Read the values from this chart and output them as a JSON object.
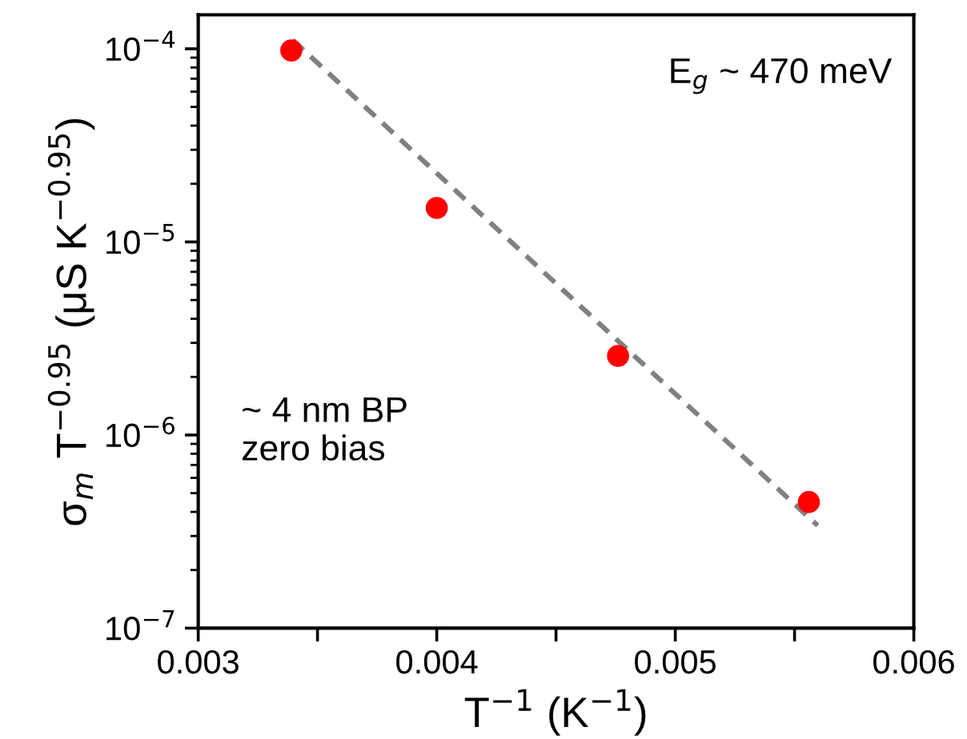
{
  "chart_data": {
    "type": "scatter",
    "xlabel": "T$^{−1}$ (K$^{−1}$)",
    "ylabel": "σ$_{m}$ T$^{−0.95}$ (μS K$^{−0.95}$)",
    "x": [
      0.00339,
      0.004,
      0.00476,
      0.00556
    ],
    "series": [
      {
        "color": "#ff0000",
        "marker": "circle",
        "values": [
          9.8e-05,
          1.5e-05,
          2.57e-06,
          4.5e-07
        ]
      },
      {
        "type": "line",
        "color": "#808080",
        "line_style": "dashed",
        "marker": "none",
        "x": [
          0.003396,
          0.005597
        ],
        "values": [
          0.000111,
          3.4e-07
        ]
      }
    ],
    "log": "y",
    "xlim": [
      0.003,
      0.006
    ],
    "ylim": [
      1e-07,
      0.00015
    ],
    "xticks": [
      0.003,
      {
        "value": 0.0035,
        "label": null
      },
      0.004,
      {
        "value": 0.0045,
        "label": null
      },
      0.005,
      {
        "value": 0.0055,
        "label": null
      },
      0.006
    ],
    "yticks": [
      {
        "value": 1e-07,
        "label": "10$^{−7}$"
      },
      {
        "value": 1e-06,
        "label": "10$^{−6}$"
      },
      {
        "value": 1e-05,
        "label": "10$^{−5}$"
      },
      {
        "value": 0.0001,
        "label": "10$^{−4}$"
      }
    ],
    "grid": false,
    "legend": false,
    "annotations": [
      "E$_{g}$ ~ 470 meV",
      "~ 4 nm BP\nzero bias"
    ]
  }
}
